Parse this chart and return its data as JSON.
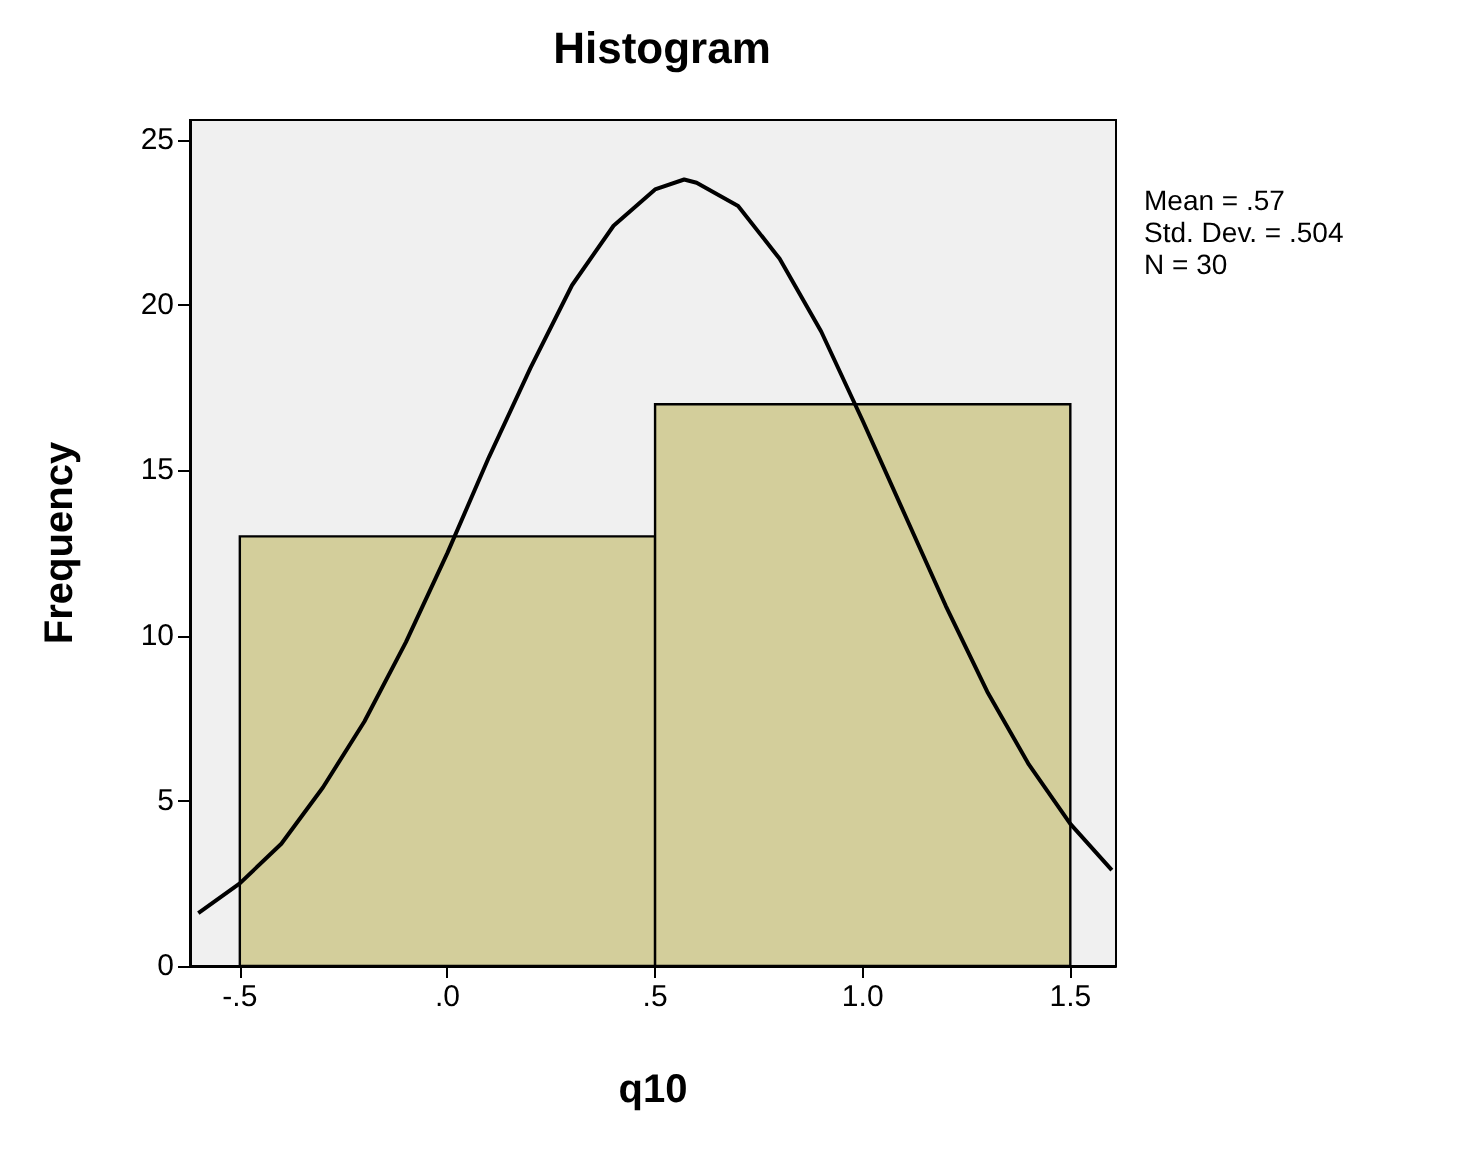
{
  "chart_data": {
    "type": "histogram",
    "title": "Histogram",
    "xlabel": "q10",
    "ylabel": "Frequency",
    "bins": [
      -0.5,
      0.5,
      1.5
    ],
    "values": [
      13,
      17
    ],
    "color": "#d3ce9b",
    "series": [
      {
        "type": "line",
        "color": "#000000",
        "x": [
          -0.6,
          -0.5,
          -0.4,
          -0.3,
          -0.2,
          -0.1,
          0,
          0.1,
          0.2,
          0.3,
          0.4,
          0.5,
          0.57,
          0.6,
          0.7,
          0.8,
          0.9,
          1.0,
          1.1,
          1.2,
          1.3,
          1.4,
          1.5,
          1.6
        ],
        "values": [
          1.6,
          2.5,
          3.7,
          5.4,
          7.4,
          9.8,
          12.5,
          15.4,
          18.1,
          20.6,
          22.4,
          23.5,
          23.8,
          23.7,
          23.0,
          21.4,
          19.2,
          16.5,
          13.7,
          10.9,
          8.3,
          6.1,
          4.3,
          2.9
        ]
      }
    ],
    "marker": "none",
    "line_style": "solid",
    "grid": false,
    "xlim": [
      -0.62,
      1.61
    ],
    "ylim": [
      0,
      25.6
    ],
    "xticks": [
      {
        "value": -0.5,
        "label": "-.5"
      },
      {
        "value": 0,
        "label": ".0"
      },
      {
        "value": 0.5,
        "label": ".5"
      },
      {
        "value": 1.0,
        "label": "1.0"
      },
      {
        "value": 1.5,
        "label": "1.5"
      }
    ],
    "yticks": [
      0,
      5,
      10,
      15,
      20,
      25
    ],
    "annotations": [
      "Mean = .57",
      "Std. Dev. = .504",
      "N = 30"
    ]
  }
}
